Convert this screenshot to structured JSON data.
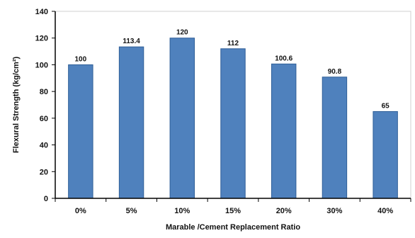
{
  "chart_data": {
    "type": "bar",
    "categories": [
      "0%",
      "5%",
      "10%",
      "15%",
      "20%",
      "30%",
      "40%"
    ],
    "values": [
      100,
      113.4,
      120,
      112,
      100.6,
      90.8,
      65
    ],
    "data_labels": [
      "100",
      "113.4",
      "120",
      "112",
      "100.6",
      "90.8",
      "65"
    ],
    "y_ticks": [
      "0",
      "20",
      "40",
      "60",
      "80",
      "100",
      "120",
      "140"
    ],
    "xlabel": "Marable /Cement Replacement Ratio",
    "ylabel": "Flexural Strength (kg/cm²)",
    "ylim": [
      0,
      140
    ],
    "grid": false,
    "legend": false,
    "colors": {
      "bar": "#4f81bd",
      "bar_edge": "#2f5f98",
      "axis": "#000000"
    }
  }
}
